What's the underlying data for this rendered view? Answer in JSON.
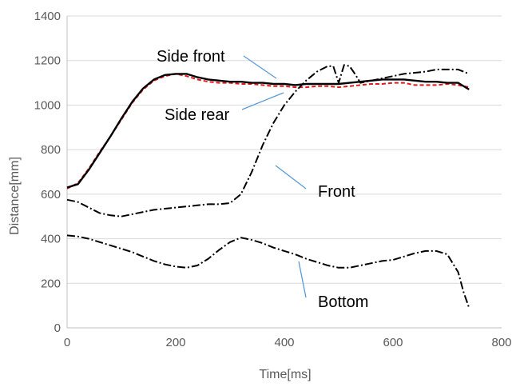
{
  "chart_data": {
    "type": "line",
    "xlabel": "Time[ms]",
    "ylabel": "Distance[mm]",
    "xlim": [
      0,
      800
    ],
    "ylim": [
      0,
      1400
    ],
    "x_ticks": [
      0,
      200,
      400,
      600,
      800
    ],
    "y_ticks": [
      0,
      200,
      400,
      600,
      800,
      1000,
      1200,
      1400
    ],
    "x_tick_labels": [
      "0",
      "200",
      "400",
      "600",
      "800"
    ],
    "y_tick_labels": [
      "0",
      "200",
      "400",
      "600",
      "800",
      "1000",
      "1200",
      "1400"
    ],
    "grid": "horizontal",
    "legend": "none",
    "series": [
      {
        "name": "Side rear",
        "color": "#e8141c",
        "style": "dashed",
        "x": [
          0,
          20,
          40,
          60,
          80,
          100,
          120,
          140,
          160,
          180,
          200,
          220,
          240,
          260,
          280,
          300,
          320,
          340,
          360,
          380,
          400,
          420,
          440,
          460,
          480,
          500,
          520,
          540,
          560,
          580,
          600,
          620,
          640,
          660,
          680,
          700,
          720,
          740
        ],
        "values": [
          625,
          650,
          715,
          790,
          860,
          935,
          1010,
          1070,
          1110,
          1130,
          1140,
          1130,
          1115,
          1105,
          1100,
          1100,
          1095,
          1095,
          1090,
          1085,
          1085,
          1080,
          1080,
          1085,
          1085,
          1080,
          1085,
          1090,
          1095,
          1095,
          1100,
          1100,
          1090,
          1090,
          1090,
          1095,
          1090,
          1080
        ]
      },
      {
        "name": "Side front",
        "color": "#000000",
        "style": "solid",
        "x": [
          0,
          20,
          40,
          60,
          80,
          100,
          120,
          140,
          160,
          180,
          200,
          220,
          240,
          260,
          280,
          300,
          320,
          340,
          360,
          380,
          400,
          420,
          440,
          460,
          480,
          500,
          520,
          540,
          560,
          580,
          600,
          620,
          640,
          660,
          680,
          700,
          720,
          740
        ],
        "values": [
          630,
          645,
          710,
          785,
          860,
          940,
          1015,
          1075,
          1115,
          1135,
          1140,
          1140,
          1125,
          1115,
          1110,
          1105,
          1105,
          1100,
          1100,
          1095,
          1095,
          1090,
          1095,
          1095,
          1095,
          1095,
          1100,
          1105,
          1110,
          1115,
          1115,
          1115,
          1110,
          1105,
          1105,
          1100,
          1100,
          1070
        ]
      },
      {
        "name": "Front",
        "color": "#000000",
        "style": "dashdot",
        "x": [
          0,
          20,
          40,
          60,
          80,
          100,
          120,
          140,
          160,
          180,
          200,
          220,
          240,
          260,
          280,
          300,
          320,
          340,
          360,
          380,
          400,
          420,
          440,
          460,
          480,
          490,
          500,
          510,
          520,
          530,
          540,
          560,
          580,
          600,
          620,
          640,
          660,
          680,
          700,
          720,
          740
        ],
        "values": [
          575,
          565,
          540,
          515,
          505,
          500,
          510,
          520,
          530,
          535,
          540,
          545,
          550,
          555,
          555,
          560,
          600,
          700,
          820,
          920,
          1000,
          1060,
          1110,
          1150,
          1175,
          1175,
          1100,
          1180,
          1175,
          1140,
          1100,
          1110,
          1120,
          1130,
          1140,
          1145,
          1150,
          1160,
          1160,
          1160,
          1140
        ]
      },
      {
        "name": "Bottom",
        "color": "#000000",
        "style": "dashdot",
        "x": [
          0,
          20,
          40,
          60,
          80,
          100,
          120,
          140,
          160,
          180,
          200,
          220,
          240,
          260,
          280,
          300,
          320,
          340,
          360,
          380,
          400,
          420,
          440,
          460,
          480,
          500,
          520,
          540,
          560,
          580,
          600,
          620,
          640,
          660,
          680,
          700,
          720,
          730,
          740
        ],
        "values": [
          415,
          410,
          400,
          385,
          370,
          355,
          340,
          320,
          300,
          285,
          275,
          270,
          280,
          310,
          350,
          385,
          405,
          395,
          380,
          360,
          345,
          330,
          310,
          295,
          280,
          270,
          270,
          280,
          290,
          300,
          305,
          320,
          335,
          345,
          345,
          330,
          250,
          160,
          90
        ]
      }
    ],
    "annotations": [
      {
        "text": "Side front",
        "series": "Side front",
        "label_at": [
          270,
          1230
        ],
        "point_at": [
          392,
          1115
        ]
      },
      {
        "text": "Side rear",
        "series": "Side rear",
        "label_at": [
          282,
          960
        ],
        "point_at": [
          405,
          1085
        ]
      },
      {
        "text": "Front",
        "series": "Front",
        "label_at": [
          440,
          620
        ],
        "point_at": [
          380,
          770
        ]
      },
      {
        "text": "Bottom",
        "series": "Bottom",
        "label_at": [
          445,
          155
        ],
        "point_at": [
          430,
          310
        ]
      }
    ]
  }
}
